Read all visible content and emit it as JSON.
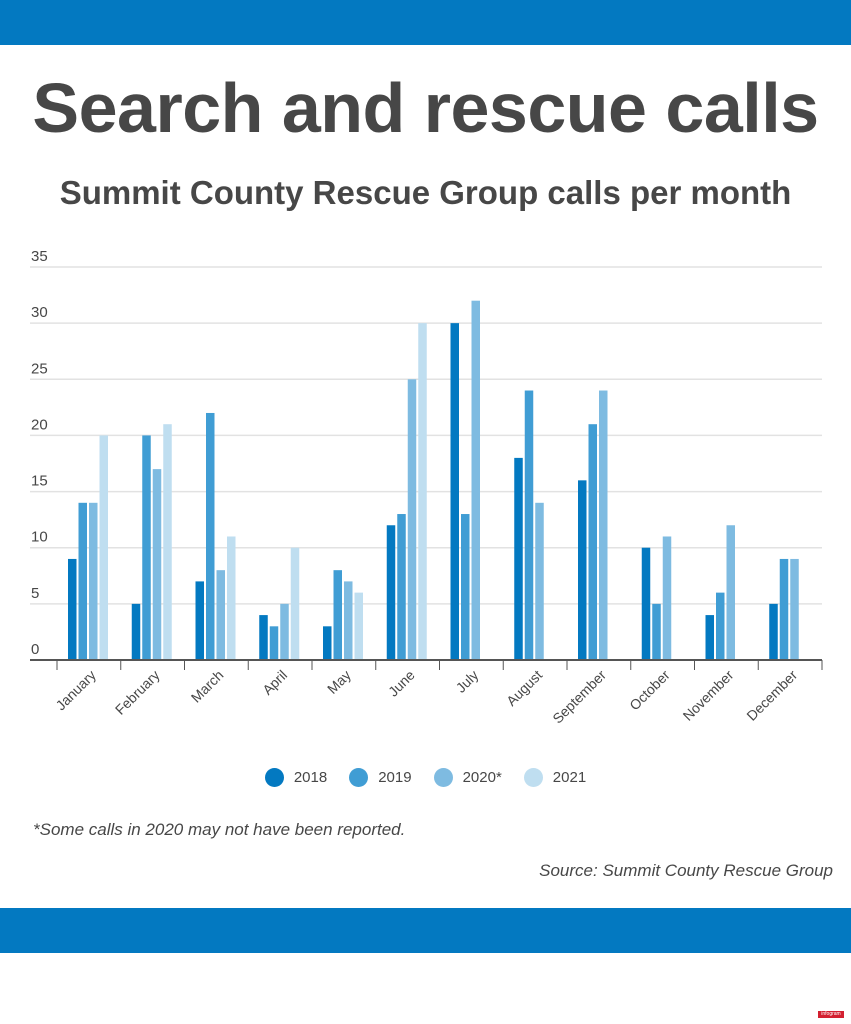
{
  "header": {
    "title": "Search and rescue calls",
    "subtitle": "Summit County Rescue Group calls per month"
  },
  "chart_data": {
    "type": "bar",
    "categories": [
      "January",
      "February",
      "March",
      "April",
      "May",
      "June",
      "July",
      "August",
      "September",
      "October",
      "November",
      "December"
    ],
    "series": [
      {
        "name": "2018",
        "color": "#0379c1",
        "values": [
          9,
          5,
          7,
          4,
          3,
          12,
          30,
          18,
          16,
          10,
          4,
          5
        ]
      },
      {
        "name": "2019",
        "color": "#409dd4",
        "values": [
          14,
          20,
          22,
          3,
          8,
          13,
          13,
          24,
          21,
          5,
          6,
          9
        ]
      },
      {
        "name": "2020*",
        "color": "#7ebbe1",
        "values": [
          14,
          17,
          8,
          5,
          7,
          25,
          32,
          14,
          24,
          11,
          12,
          9
        ]
      },
      {
        "name": "2021",
        "color": "#bfdef0",
        "values": [
          20,
          21,
          11,
          10,
          6,
          30,
          null,
          null,
          null,
          null,
          null,
          null
        ]
      }
    ],
    "yticks": [
      0,
      5,
      10,
      15,
      20,
      25,
      30,
      35
    ],
    "ylim": [
      0,
      35
    ],
    "grid": true,
    "legend": "bottom"
  },
  "footer": {
    "note": "*Some calls in 2020 may not have been reported.",
    "source": "Source: Summit County Rescue Group",
    "logo": "infogram"
  }
}
